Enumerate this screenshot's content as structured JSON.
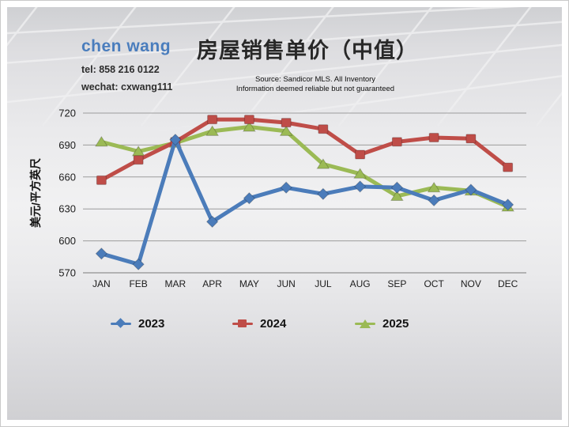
{
  "header": {
    "agent_name": "chen wang",
    "tel": "tel: 858 216 0122",
    "wechat": "wechat: cxwang111",
    "title": "房屋销售单价（中值）",
    "source_line1": "Source: Sandicor MLS. All Inventory",
    "source_line2": "Information deemed reliable but not guaranteed"
  },
  "chart_data": {
    "type": "line",
    "title": "房屋销售单价（中值）",
    "xlabel": "",
    "ylabel": "美元/平方英尺",
    "ylim": [
      570,
      720
    ],
    "yticks": [
      570,
      600,
      630,
      660,
      690,
      720
    ],
    "grid": true,
    "legend_position": "bottom",
    "categories": [
      "JAN",
      "FEB",
      "MAR",
      "APR",
      "MAY",
      "JUN",
      "JUL",
      "AUG",
      "SEP",
      "OCT",
      "NOV",
      "DEC"
    ],
    "series": [
      {
        "name": "2023",
        "color": "#4b7cba",
        "marker": "diamond",
        "values": [
          588,
          578,
          695,
          618,
          640,
          650,
          644,
          651,
          650,
          638,
          648,
          634
        ]
      },
      {
        "name": "2024",
        "color": "#bf4d48",
        "marker": "square",
        "values": [
          657,
          676,
          693,
          714,
          714,
          711,
          705,
          681,
          693,
          697,
          696,
          669
        ]
      },
      {
        "name": "2025",
        "color": "#9bba55",
        "marker": "triangle",
        "values": [
          693,
          684,
          692,
          703,
          707,
          703,
          672,
          663,
          642,
          650,
          647,
          632
        ]
      }
    ]
  },
  "colors": {
    "accent_blue": "#4a7dbd",
    "series_2023": "#4b7cba",
    "series_2024": "#bf4d48",
    "series_2025": "#9bba55",
    "gridline": "#9c9c9c",
    "axis": "#7a7a7a"
  }
}
